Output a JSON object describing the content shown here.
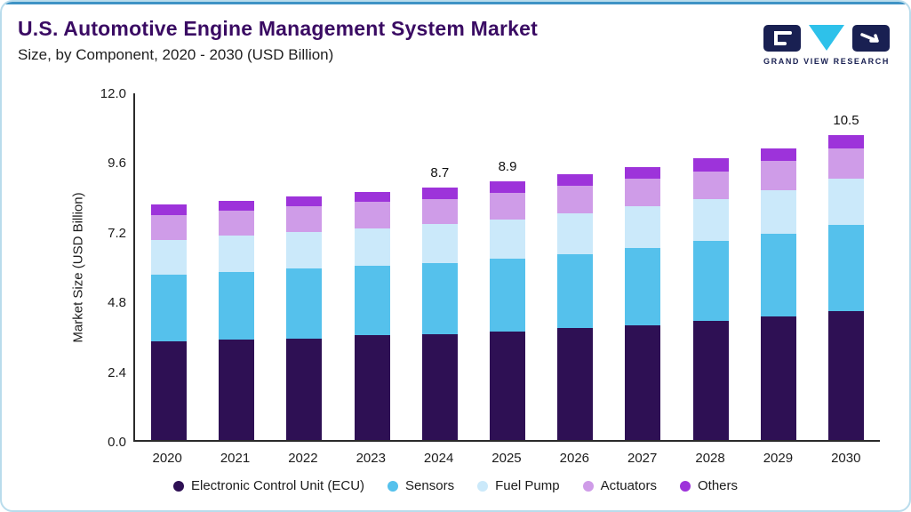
{
  "header": {
    "title": "U.S. Automotive Engine Management System Market",
    "subtitle": "Size, by Component, 2020 - 2030 (USD Billion)",
    "logo_text": "GRAND VIEW RESEARCH"
  },
  "chart_data": {
    "type": "bar",
    "stacked": true,
    "title": "U.S. Automotive Engine Management System Market Size, by Component, 2020 - 2030 (USD Billion)",
    "xlabel": "",
    "ylabel": "Market Size (USD Billion)",
    "ylim": [
      0,
      12
    ],
    "yticks": [
      0.0,
      2.4,
      4.8,
      7.2,
      9.6,
      12.0
    ],
    "ytick_labels": [
      "0.0",
      "2.4",
      "4.8",
      "7.2",
      "9.6",
      "12.0"
    ],
    "grid": false,
    "legend_position": "bottom",
    "categories": [
      "2020",
      "2021",
      "2022",
      "2023",
      "2024",
      "2025",
      "2026",
      "2027",
      "2028",
      "2029",
      "2030"
    ],
    "series": [
      {
        "name": "Electronic Control Unit (ECU)",
        "color": "#2e1054",
        "values": [
          3.4,
          3.45,
          3.5,
          3.6,
          3.65,
          3.75,
          3.85,
          3.95,
          4.1,
          4.25,
          4.45
        ]
      },
      {
        "name": "Sensors",
        "color": "#55c1ec",
        "values": [
          2.3,
          2.35,
          2.4,
          2.4,
          2.45,
          2.5,
          2.55,
          2.65,
          2.75,
          2.85,
          2.95
        ]
      },
      {
        "name": "Fuel Pump",
        "color": "#cbe9fa",
        "values": [
          1.2,
          1.25,
          1.25,
          1.3,
          1.35,
          1.35,
          1.4,
          1.45,
          1.45,
          1.5,
          1.6
        ]
      },
      {
        "name": "Actuators",
        "color": "#cf9ce8",
        "values": [
          0.85,
          0.85,
          0.9,
          0.9,
          0.85,
          0.9,
          0.95,
          0.95,
          0.95,
          1.0,
          1.05
        ]
      },
      {
        "name": "Others",
        "color": "#9d33da",
        "values": [
          0.35,
          0.35,
          0.35,
          0.35,
          0.4,
          0.4,
          0.4,
          0.4,
          0.45,
          0.45,
          0.45
        ]
      }
    ],
    "totals": [
      8.1,
      8.25,
      8.4,
      8.55,
      8.7,
      8.9,
      9.15,
      9.4,
      9.7,
      10.05,
      10.5
    ],
    "total_labels": {
      "2024": "8.7",
      "2025": "8.9",
      "2030": "10.5"
    }
  }
}
